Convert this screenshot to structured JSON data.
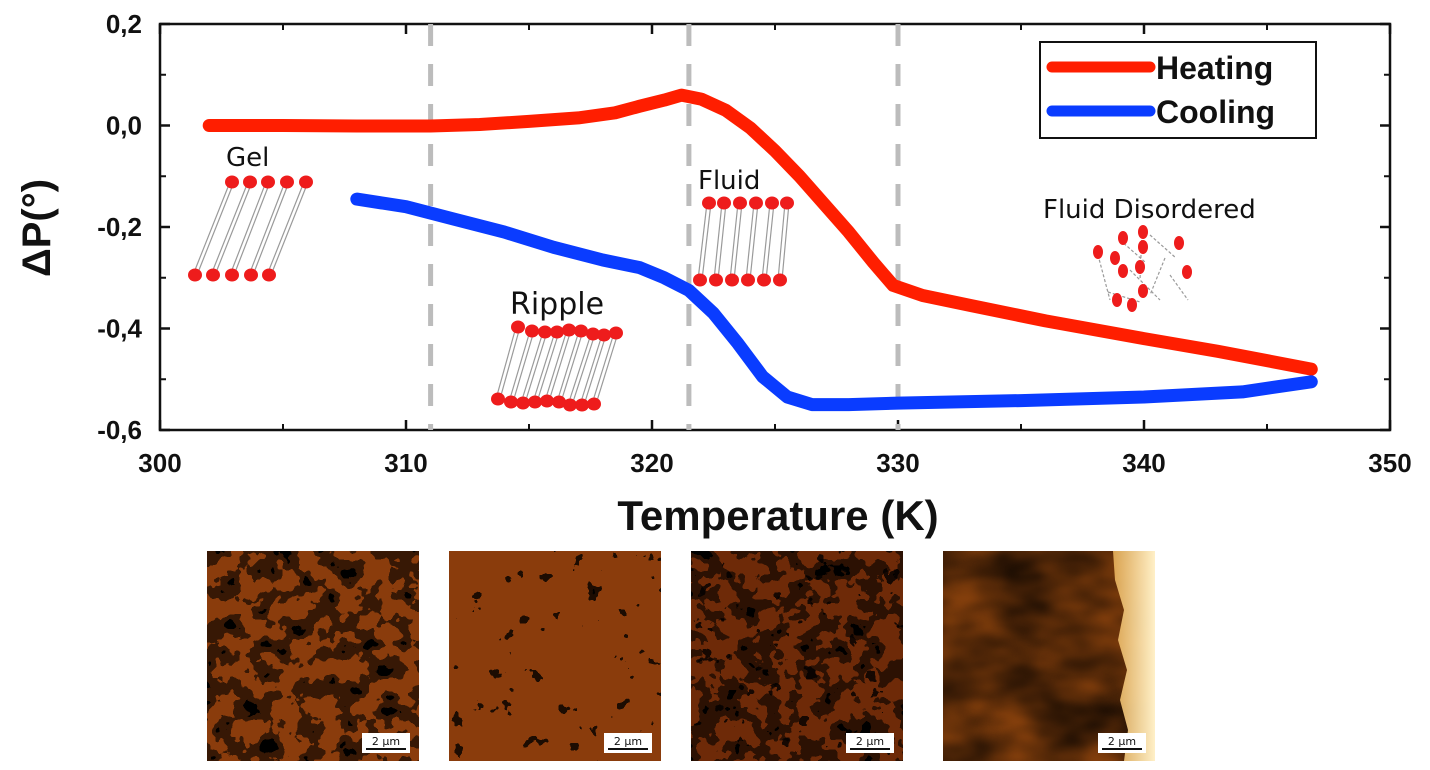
{
  "chart_data": {
    "type": "line",
    "xlabel": "Temperature (K)",
    "ylabel": "ΔP(°)",
    "xlim": [
      300,
      350
    ],
    "ylim": [
      -0.6,
      0.2
    ],
    "xticks": [
      300,
      310,
      320,
      330,
      340,
      350
    ],
    "xtick_labels": [
      "300",
      "310",
      "320",
      "330",
      "340",
      "350"
    ],
    "yticks": [
      0.2,
      0.0,
      -0.2,
      -0.4,
      -0.6
    ],
    "ytick_labels": [
      "0,2",
      "0,0",
      "-0,2",
      "-0,4",
      "-0,6"
    ],
    "grid": false,
    "legend_position": "top-right",
    "series": [
      {
        "name": "Heating",
        "color": "#ff1e00",
        "x": [
          302.0,
          305.0,
          308.0,
          311.0,
          313.0,
          315.0,
          317.0,
          318.5,
          319.5,
          320.5,
          321.2,
          322.0,
          323.0,
          324.0,
          325.0,
          326.0,
          327.0,
          328.0,
          329.0,
          329.8,
          331.0,
          333.0,
          336.0,
          340.0,
          343.0,
          346.8
        ],
        "y": [
          0.0,
          0.0,
          -0.001,
          -0.001,
          0.002,
          0.008,
          0.015,
          0.025,
          0.038,
          0.05,
          0.06,
          0.052,
          0.03,
          -0.005,
          -0.05,
          -0.1,
          -0.155,
          -0.21,
          -0.27,
          -0.315,
          -0.335,
          -0.355,
          -0.385,
          -0.42,
          -0.445,
          -0.48
        ]
      },
      {
        "name": "Cooling",
        "color": "#0a3cff",
        "x": [
          308.0,
          310.0,
          312.0,
          314.0,
          316.0,
          318.0,
          319.5,
          320.5,
          321.5,
          322.5,
          323.5,
          324.5,
          325.5,
          326.5,
          328.0,
          330.0,
          335.0,
          340.0,
          344.0,
          346.8
        ],
        "y": [
          -0.145,
          -0.16,
          -0.185,
          -0.21,
          -0.24,
          -0.265,
          -0.28,
          -0.3,
          -0.325,
          -0.37,
          -0.43,
          -0.495,
          -0.535,
          -0.55,
          -0.55,
          -0.547,
          -0.542,
          -0.535,
          -0.525,
          -0.505
        ]
      }
    ],
    "phase_lines": [
      311,
      321.5,
      330
    ],
    "annotations": [
      "Gel",
      "Ripple",
      "Fluid",
      "Fluid Disordered"
    ]
  },
  "images": {
    "scale_bar_label": "2 µm",
    "panels": [
      "afm-gel",
      "afm-ripple",
      "afm-fluid",
      "afm-fluid-disordered"
    ]
  },
  "colors": {
    "heating": "#ff1e00",
    "cooling": "#0a3cff",
    "lipid_head": "#ee1c1c",
    "dashed_line": "#bcbcbc"
  }
}
